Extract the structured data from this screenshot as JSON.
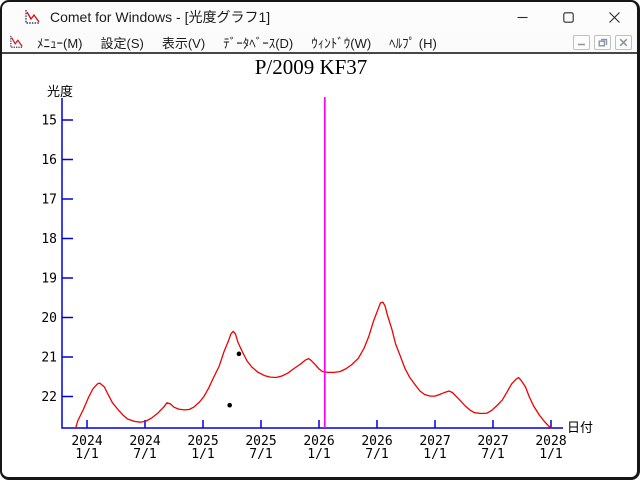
{
  "window": {
    "title": "Comet for Windows - [光度グラフ1]",
    "controls": [
      "minimize-icon",
      "maximize-icon",
      "close-icon"
    ]
  },
  "menubar": {
    "items": [
      {
        "label": "ﾒﾆｭｰ(M)"
      },
      {
        "label": "設定(S)"
      },
      {
        "label": "表示(V)"
      },
      {
        "label": "ﾃﾞｰﾀﾍﾞｰｽ(D)"
      },
      {
        "label": "ｳｨﾝﾄﾞｳ(W)"
      },
      {
        "label": "ﾍﾙﾌﾟ (H)"
      }
    ],
    "mdi_controls": [
      "mdi-minimize-icon",
      "mdi-restore-icon",
      "mdi-close-icon"
    ]
  },
  "chart_data": {
    "type": "line",
    "title": "P/2009 KF37",
    "xlabel": "日付",
    "ylabel": "光度",
    "x_axis": {
      "min": 2024.0,
      "max": 2028.0,
      "ticks": [
        {
          "t": 2024.0,
          "year": "2024",
          "day": "1/1"
        },
        {
          "t": 2024.5,
          "year": "2024",
          "day": "7/1"
        },
        {
          "t": 2025.0,
          "year": "2025",
          "day": "1/1"
        },
        {
          "t": 2025.5,
          "year": "2025",
          "day": "7/1"
        },
        {
          "t": 2026.0,
          "year": "2026",
          "day": "1/1"
        },
        {
          "t": 2026.5,
          "year": "2026",
          "day": "7/1"
        },
        {
          "t": 2027.0,
          "year": "2027",
          "day": "1/1"
        },
        {
          "t": 2027.5,
          "year": "2027",
          "day": "7/1"
        },
        {
          "t": 2028.0,
          "year": "2028",
          "day": "1/1"
        }
      ]
    },
    "y_axis": {
      "min": 15,
      "max": 22,
      "ticks": [
        15,
        16,
        17,
        18,
        19,
        20,
        21,
        22
      ],
      "inverted_magnitude_scale": true
    },
    "grid": false,
    "colors": {
      "axis": "#0000dd",
      "curve": "#ee0000",
      "marker_line": "#ff00ff",
      "observation": "#000000"
    },
    "series": [
      {
        "name": "predicted-light-curve",
        "color": "#ee0000",
        "points": [
          [
            2023.9,
            22.82
          ],
          [
            2023.92,
            22.62
          ],
          [
            2023.97,
            22.32
          ],
          [
            2024.01,
            22.04
          ],
          [
            2024.05,
            21.81
          ],
          [
            2024.09,
            21.68
          ],
          [
            2024.11,
            21.66
          ],
          [
            2024.15,
            21.76
          ],
          [
            2024.18,
            21.94
          ],
          [
            2024.22,
            22.16
          ],
          [
            2024.27,
            22.34
          ],
          [
            2024.31,
            22.47
          ],
          [
            2024.35,
            22.57
          ],
          [
            2024.41,
            22.63
          ],
          [
            2024.46,
            22.65
          ],
          [
            2024.51,
            22.62
          ],
          [
            2024.56,
            22.54
          ],
          [
            2024.61,
            22.42
          ],
          [
            2024.66,
            22.27
          ],
          [
            2024.69,
            22.16
          ],
          [
            2024.72,
            22.19
          ],
          [
            2024.75,
            22.27
          ],
          [
            2024.79,
            22.32
          ],
          [
            2024.84,
            22.34
          ],
          [
            2024.88,
            22.33
          ],
          [
            2024.92,
            22.27
          ],
          [
            2024.97,
            22.14
          ],
          [
            2025.01,
            21.99
          ],
          [
            2025.05,
            21.78
          ],
          [
            2025.09,
            21.53
          ],
          [
            2025.14,
            21.23
          ],
          [
            2025.18,
            20.87
          ],
          [
            2025.22,
            20.59
          ],
          [
            2025.24,
            20.42
          ],
          [
            2025.26,
            20.35
          ],
          [
            2025.28,
            20.42
          ],
          [
            2025.3,
            20.62
          ],
          [
            2025.34,
            20.87
          ],
          [
            2025.38,
            21.1
          ],
          [
            2025.42,
            21.25
          ],
          [
            2025.47,
            21.38
          ],
          [
            2025.53,
            21.47
          ],
          [
            2025.58,
            21.51
          ],
          [
            2025.63,
            21.52
          ],
          [
            2025.68,
            21.48
          ],
          [
            2025.73,
            21.41
          ],
          [
            2025.78,
            21.3
          ],
          [
            2025.84,
            21.18
          ],
          [
            2025.88,
            21.08
          ],
          [
            2025.91,
            21.04
          ],
          [
            2025.93,
            21.08
          ],
          [
            2025.97,
            21.2
          ],
          [
            2026.0,
            21.3
          ],
          [
            2026.03,
            21.37
          ],
          [
            2026.08,
            21.39
          ],
          [
            2026.13,
            21.39
          ],
          [
            2026.18,
            21.37
          ],
          [
            2026.23,
            21.3
          ],
          [
            2026.28,
            21.2
          ],
          [
            2026.34,
            21.03
          ],
          [
            2026.39,
            20.77
          ],
          [
            2026.43,
            20.47
          ],
          [
            2026.47,
            20.09
          ],
          [
            2026.51,
            19.78
          ],
          [
            2026.53,
            19.63
          ],
          [
            2026.55,
            19.61
          ],
          [
            2026.57,
            19.71
          ],
          [
            2026.59,
            19.94
          ],
          [
            2026.63,
            20.32
          ],
          [
            2026.66,
            20.67
          ],
          [
            2026.7,
            20.97
          ],
          [
            2026.74,
            21.28
          ],
          [
            2026.78,
            21.51
          ],
          [
            2026.83,
            21.71
          ],
          [
            2026.87,
            21.86
          ],
          [
            2026.91,
            21.95
          ],
          [
            2026.96,
            21.99
          ],
          [
            2027.0,
            21.99
          ],
          [
            2027.04,
            21.95
          ],
          [
            2027.09,
            21.89
          ],
          [
            2027.12,
            21.86
          ],
          [
            2027.15,
            21.9
          ],
          [
            2027.18,
            21.99
          ],
          [
            2027.22,
            22.11
          ],
          [
            2027.26,
            22.24
          ],
          [
            2027.3,
            22.34
          ],
          [
            2027.34,
            22.41
          ],
          [
            2027.4,
            22.43
          ],
          [
            2027.45,
            22.42
          ],
          [
            2027.49,
            22.35
          ],
          [
            2027.53,
            22.24
          ],
          [
            2027.58,
            22.09
          ],
          [
            2027.62,
            21.89
          ],
          [
            2027.66,
            21.68
          ],
          [
            2027.7,
            21.56
          ],
          [
            2027.72,
            21.52
          ],
          [
            2027.74,
            21.58
          ],
          [
            2027.78,
            21.76
          ],
          [
            2027.81,
            21.99
          ],
          [
            2027.85,
            22.24
          ],
          [
            2027.9,
            22.47
          ],
          [
            2027.94,
            22.62
          ],
          [
            2027.98,
            22.75
          ],
          [
            2028.01,
            22.8
          ]
        ]
      }
    ],
    "observations": {
      "name": "observation-points",
      "color": "#000000",
      "points": [
        [
          2025.31,
          20.92
        ],
        [
          2025.23,
          22.22
        ]
      ]
    },
    "vertical_line": {
      "t": 2026.05,
      "color": "#ff00ff"
    }
  }
}
